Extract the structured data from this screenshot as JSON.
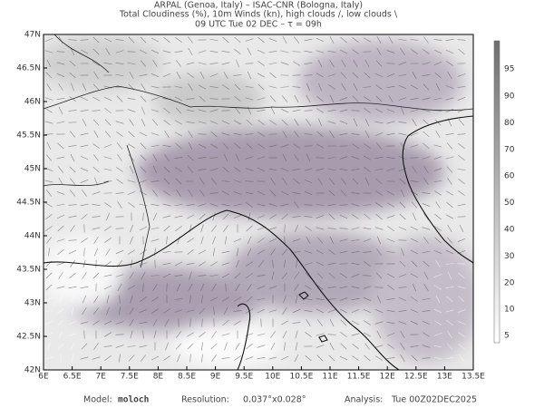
{
  "header": {
    "lines": [
      "ARPAL (Genoa, Italy)  –  ISAC-CNR (Bologna, Italy)",
      "Total Cloudiness (%), 10m Winds (kn), high clouds /, low clouds \\",
      "09 UTC Tue 02 DEC  –  τ = 09h"
    ]
  },
  "map": {
    "lon_labels": [
      "6E",
      "6.5E",
      "7E",
      "7.5E",
      "8E",
      "8.5E",
      "9E",
      "9.5E",
      "10E",
      "10.5E",
      "11E",
      "11.5E",
      "12E",
      "12.5E",
      "13E",
      "13.5E"
    ],
    "lat_labels": [
      "47N",
      "46.5N",
      "46N",
      "45.5N",
      "45N",
      "44.5N",
      "44N",
      "43.5N",
      "43N",
      "42.5N",
      "42N"
    ]
  },
  "colorbar": {
    "labels": [
      "95",
      "90",
      "80",
      "70",
      "60",
      "50",
      "40",
      "30",
      "20",
      "10",
      "5"
    ]
  },
  "footer": {
    "model_label": "Model:",
    "model": "moloch",
    "resolution_label": "Resolution:",
    "resolution": "0.037°x0.028°",
    "analysis_label": "Analysis:",
    "analysis": "Tue 00Z02DEC2025"
  }
}
